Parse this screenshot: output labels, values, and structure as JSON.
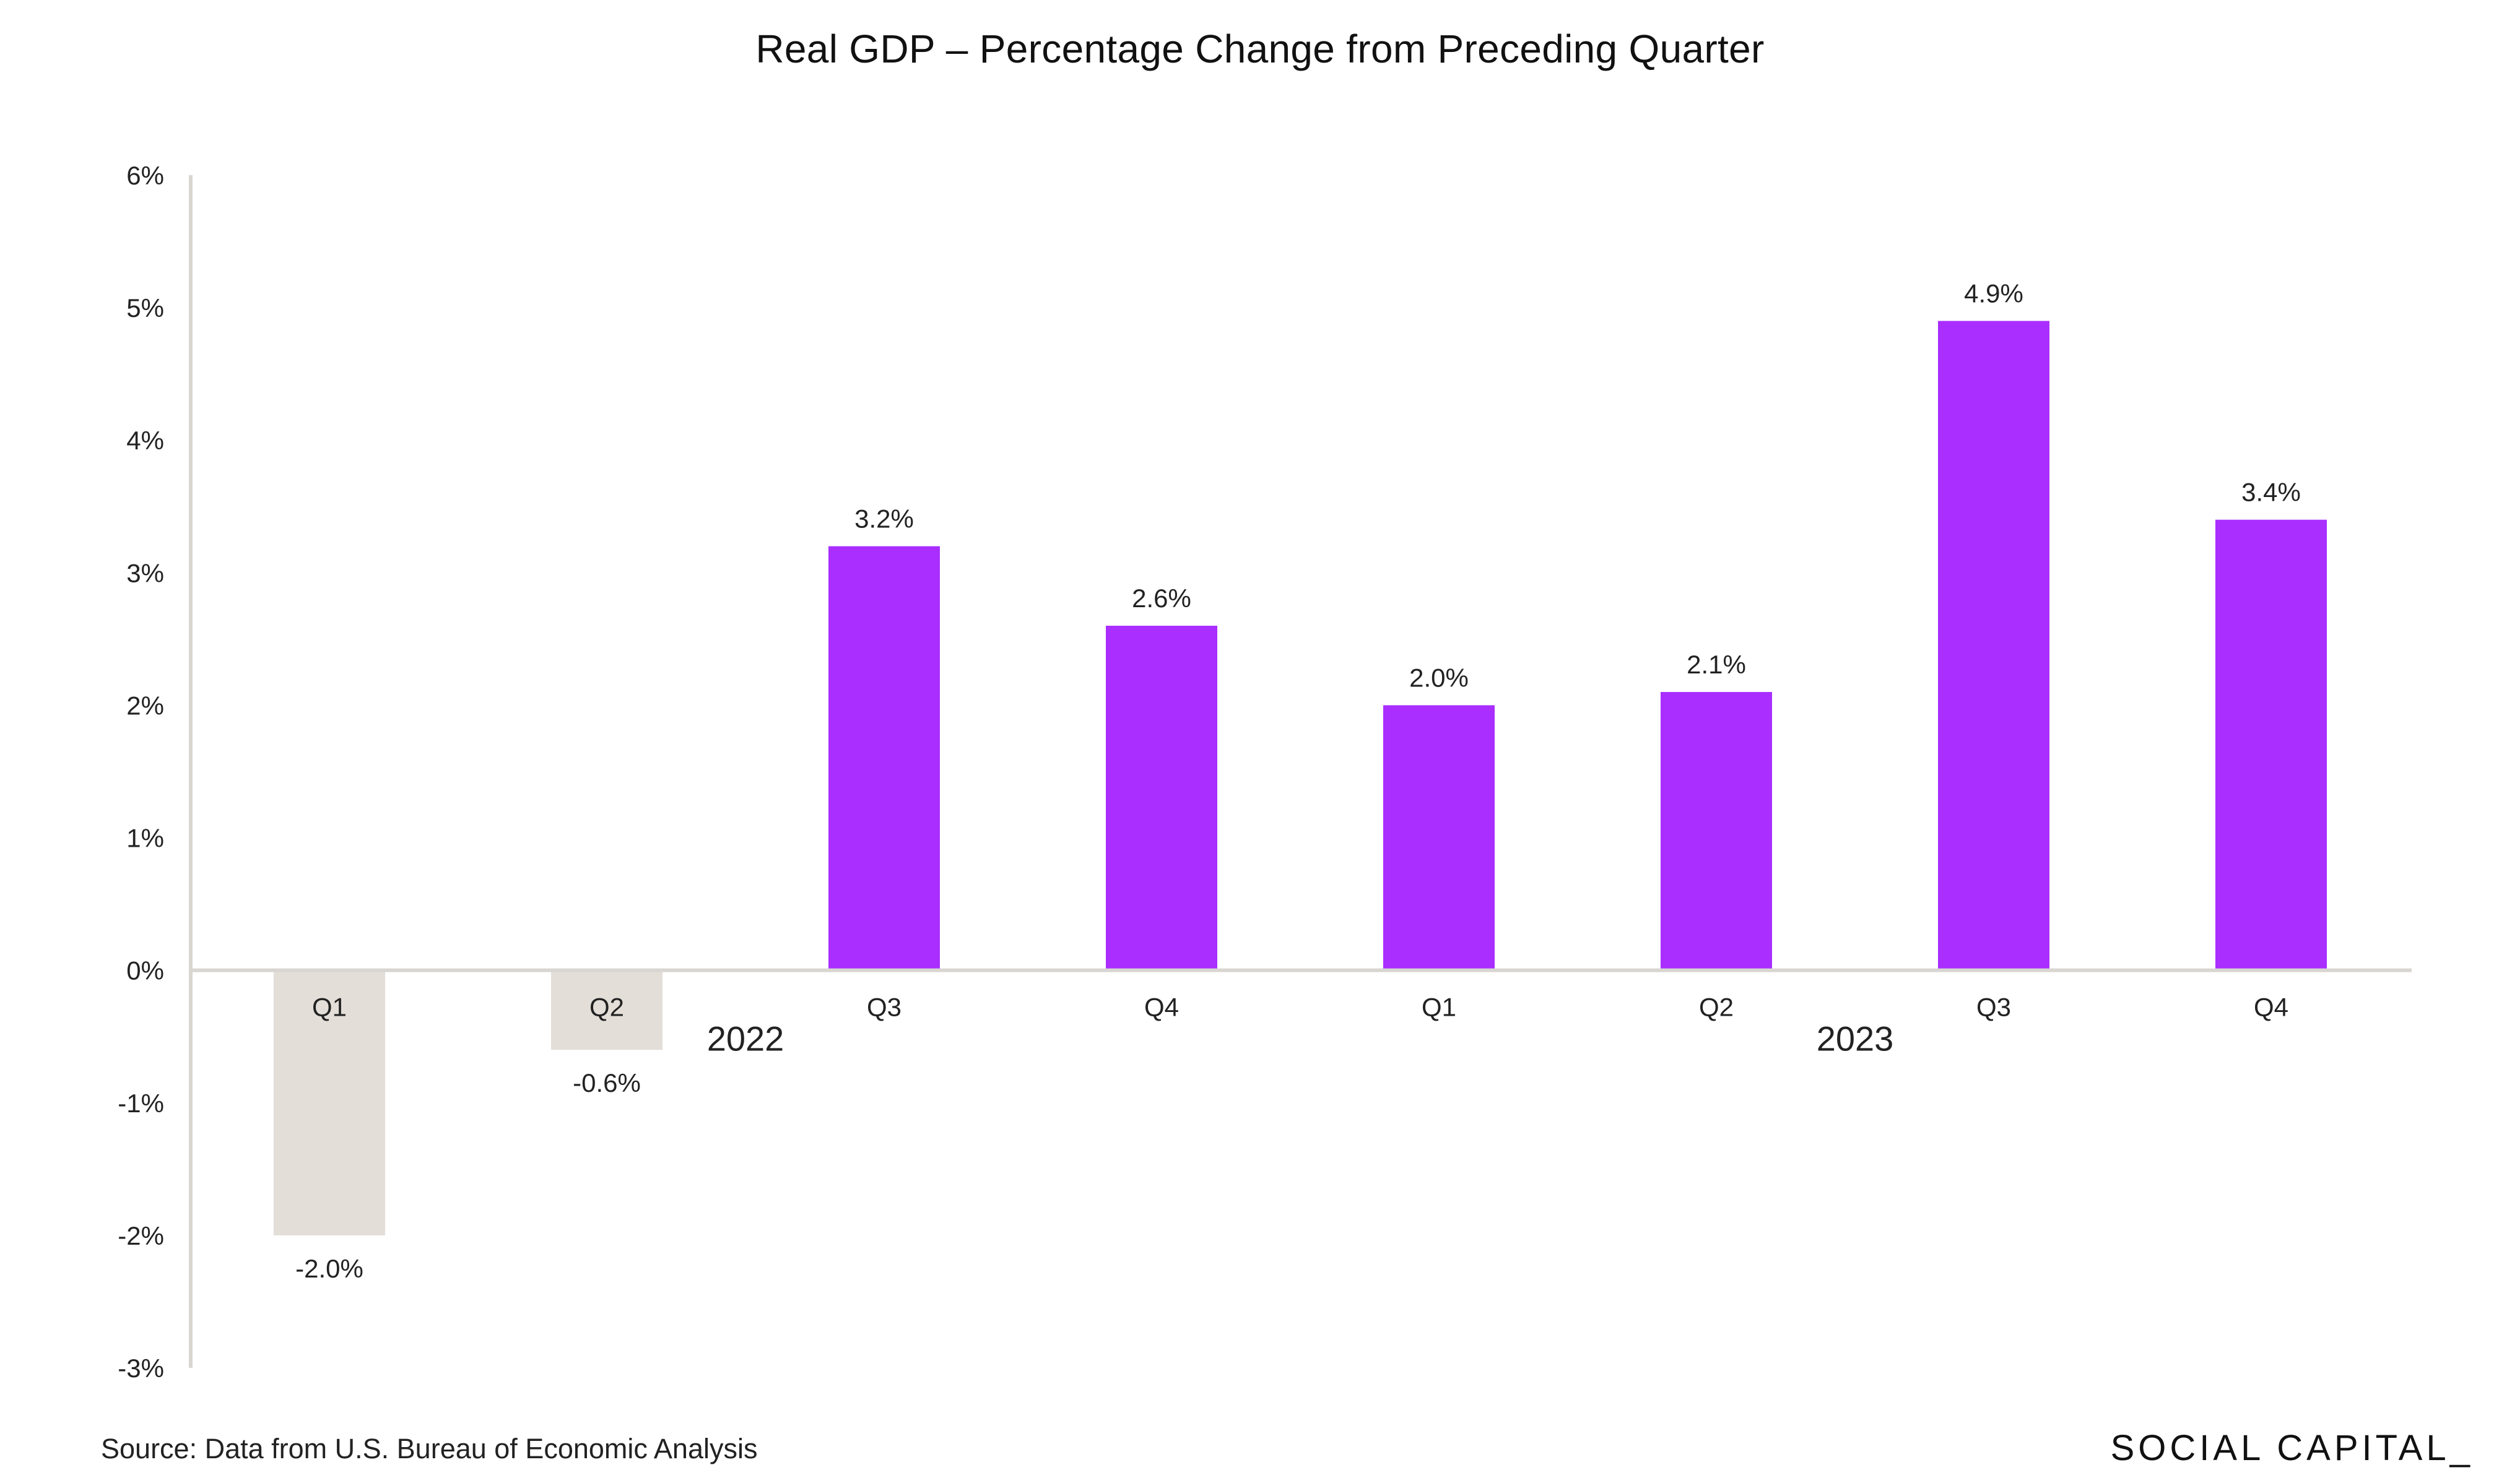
{
  "chart_data": {
    "type": "bar",
    "title": "Real GDP – Percentage Change from Preceding Quarter",
    "xlabel": "",
    "ylabel": "",
    "ylim": [
      -3,
      6
    ],
    "yticks": [
      6,
      5,
      4,
      3,
      2,
      1,
      0,
      -1,
      -2,
      -3
    ],
    "ytick_labels": [
      "6%",
      "5%",
      "4%",
      "3%",
      "2%",
      "1%",
      "0%",
      "-1%",
      "-2%",
      "-3%"
    ],
    "grid": false,
    "legend": "none",
    "categories": [
      "Q1",
      "Q2",
      "Q3",
      "Q4",
      "Q1",
      "Q2",
      "Q3",
      "Q4"
    ],
    "values": [
      -2.0,
      -0.6,
      3.2,
      2.6,
      2.0,
      2.1,
      4.9,
      3.4
    ],
    "data_labels": [
      "-2.0%",
      "-0.6%",
      "3.2%",
      "2.6%",
      "2.0%",
      "2.1%",
      "4.9%",
      "3.4%"
    ],
    "groups": [
      {
        "label": "2022",
        "categories": [
          "Q1",
          "Q2",
          "Q3",
          "Q4"
        ]
      },
      {
        "label": "2023",
        "categories": [
          "Q1",
          "Q2",
          "Q3",
          "Q4"
        ]
      }
    ],
    "colors": {
      "positive": "#A92EFF",
      "negative": "#E3DED8",
      "axis": "#D9D6D2"
    }
  },
  "footer": {
    "source": "Source: Data from U.S. Bureau of Economic Analysis",
    "brand": "SOCIAL CAPITAL_"
  }
}
